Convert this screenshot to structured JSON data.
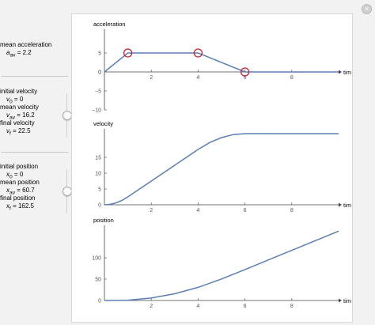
{
  "controls": {
    "mean_acceleration": {
      "title": "mean acceleration",
      "symbol": "a",
      "sub": "av",
      "eq": " =  ",
      "value": "2.2"
    },
    "velocity": {
      "initial_title": "initial velocity",
      "v0_symbol": "v",
      "v0_sub": "0",
      "v0_eq": " = ",
      "v0_value": "0",
      "mean_title": "mean velocity",
      "vav_symbol": "v",
      "vav_sub": "av",
      "vav_eq": " = ",
      "vav_value": "16.2",
      "final_title": "final velocity",
      "vf_symbol": "v",
      "vf_sub": "f",
      "vf_eq": " = ",
      "vf_value": "22.5"
    },
    "position": {
      "initial_title": "initial position",
      "x0_symbol": "x",
      "x0_sub": "0",
      "x0_eq": " = ",
      "x0_value": "0",
      "mean_title": "mean position",
      "xav_symbol": "x",
      "xav_sub": "av",
      "xav_eq": " = ",
      "xav_value": "60.7",
      "final_title": "final position",
      "xf_symbol": "x",
      "xf_sub": "f",
      "xf_eq": " = ",
      "xf_value": "162.5"
    }
  },
  "close_icon": "close-icon",
  "colors": {
    "curve": "#5b7fb5",
    "marker": "#d0202e",
    "axis": "#444444",
    "panel": "#f2f2f2"
  },
  "chart_data": [
    {
      "type": "line",
      "ylabel": "acceleration",
      "xlabel": "time",
      "xlim": [
        0,
        10
      ],
      "ylim": [
        -10,
        10
      ],
      "xticks": [
        2,
        4,
        6,
        8
      ],
      "yticks": [
        -10,
        -5,
        0,
        5
      ],
      "series": [
        {
          "x": [
            0,
            1,
            4,
            6,
            10
          ],
          "y": [
            0,
            5,
            5,
            0,
            0
          ]
        }
      ],
      "markers": [
        {
          "x": 1,
          "y": 5
        },
        {
          "x": 4,
          "y": 5
        },
        {
          "x": 6,
          "y": 0
        }
      ]
    },
    {
      "type": "line",
      "ylabel": "velocity",
      "xlabel": "time",
      "xlim": [
        0,
        10
      ],
      "ylim": [
        0,
        22.5
      ],
      "xticks": [
        2,
        4,
        6,
        8
      ],
      "yticks": [
        5,
        10,
        15
      ],
      "series": [
        {
          "x": [
            0,
            0.25,
            0.5,
            0.75,
            1,
            2,
            3,
            4,
            4.5,
            5,
            5.5,
            6,
            7,
            8,
            9,
            10
          ],
          "y": [
            0,
            0.16,
            0.63,
            1.41,
            2.5,
            7.5,
            12.5,
            17.5,
            19.69,
            21.25,
            22.19,
            22.5,
            22.5,
            22.5,
            22.5,
            22.5
          ]
        }
      ]
    },
    {
      "type": "line",
      "ylabel": "position",
      "xlabel": "time",
      "xlim": [
        0,
        10
      ],
      "ylim": [
        0,
        165
      ],
      "xticks": [
        2,
        4,
        6,
        8
      ],
      "yticks": [
        50,
        100
      ],
      "series": [
        {
          "x": [
            0,
            1,
            2,
            3,
            4,
            5,
            6,
            7,
            8,
            9,
            10
          ],
          "y": [
            0,
            0.83,
            5.83,
            15.83,
            30.83,
            50.3,
            72.5,
            95,
            117.5,
            140,
            162.5
          ]
        }
      ]
    }
  ]
}
